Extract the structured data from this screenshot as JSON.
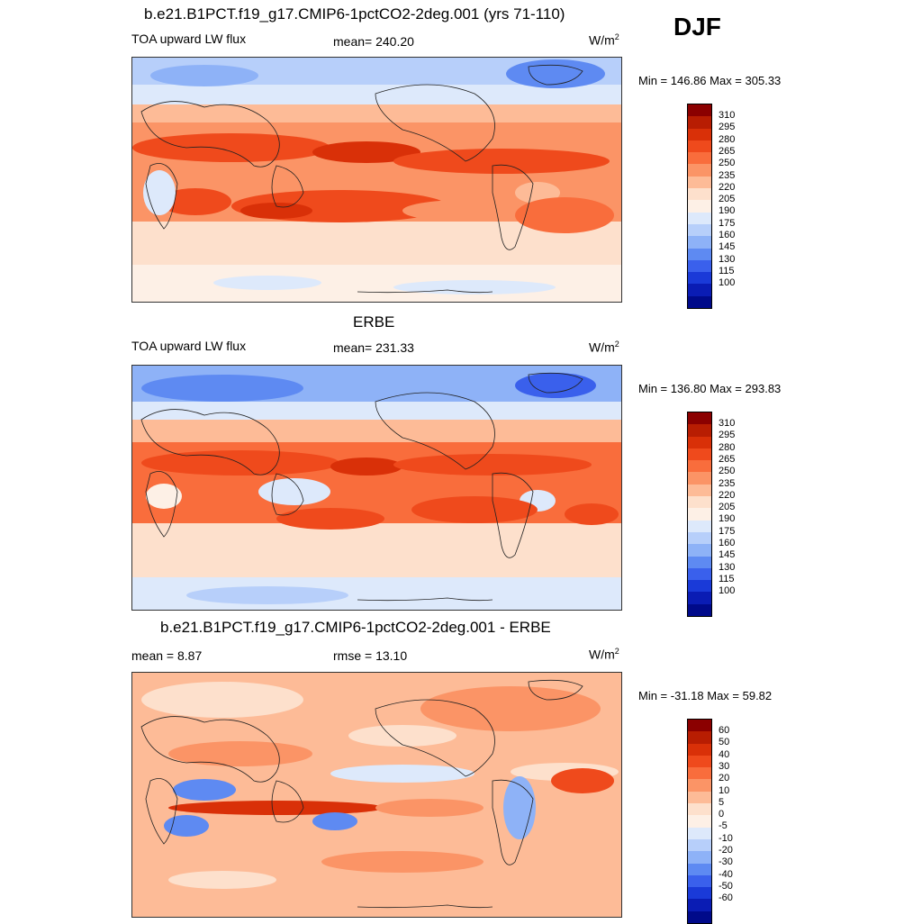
{
  "header": {
    "season": "DJF"
  },
  "panels": [
    {
      "title": "b.e21.B1PCT.f19_g17.CMIP6-1pctCO2-2deg.001 (yrs 71-110)",
      "left_label": "TOA upward LW flux",
      "center_label": "mean= 240.20",
      "units": "W/m",
      "units_sup": "2",
      "minmax": "Min = 146.86 Max = 305.33"
    },
    {
      "title": "ERBE",
      "left_label": "TOA upward LW flux",
      "center_label": "mean= 231.33",
      "units": "W/m",
      "units_sup": "2",
      "minmax": "Min = 136.80 Max = 293.83"
    },
    {
      "title": "b.e21.B1PCT.f19_g17.CMIP6-1pctCO2-2deg.001 - ERBE",
      "left_label": "mean =   8.87",
      "center_label": "rmse =  13.10",
      "units": "W/m",
      "units_sup": "2",
      "minmax": "Min = -31.18 Max =  59.82"
    }
  ],
  "colorbars": {
    "flux": {
      "labels": [
        "310",
        "295",
        "280",
        "265",
        "250",
        "235",
        "220",
        "205",
        "190",
        "175",
        "160",
        "145",
        "130",
        "115",
        "100"
      ],
      "colors": [
        "#8b0000",
        "#b81d02",
        "#d93008",
        "#ef4a1c",
        "#f96d3c",
        "#fb9466",
        "#fdbb97",
        "#fde0cc",
        "#fdf0e6",
        "#dde9fb",
        "#b7cffa",
        "#8eb2f7",
        "#5e8af2",
        "#3a60ec",
        "#1a3ad8",
        "#0a1cb4",
        "#000a8a"
      ]
    },
    "diff": {
      "labels": [
        "60",
        "50",
        "40",
        "30",
        "20",
        "10",
        "5",
        "0",
        "-5",
        "-10",
        "-20",
        "-30",
        "-40",
        "-50",
        "-60"
      ],
      "colors": [
        "#8b0000",
        "#b81d02",
        "#d93008",
        "#ef4a1c",
        "#f96d3c",
        "#fb9466",
        "#fdbb97",
        "#fde0cc",
        "#fdf0e6",
        "#dde9fb",
        "#b7cffa",
        "#8eb2f7",
        "#5e8af2",
        "#3a60ec",
        "#1a3ad8",
        "#0a1cb4",
        "#000a8a"
      ]
    }
  }
}
